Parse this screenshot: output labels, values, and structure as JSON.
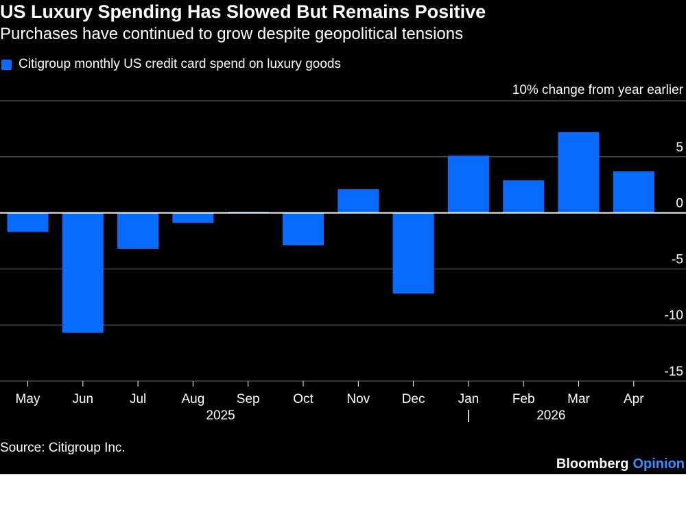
{
  "header": {
    "title": "US Luxury Spending Has Slowed But Remains Positive",
    "subtitle": "Purchases have continued to grow despite geopolitical tensions"
  },
  "footer": {
    "source": "Source: Citigroup Inc.",
    "brand_main": "Bloomberg",
    "brand_accent": "Opinion"
  },
  "colors": {
    "bar": "#0a6bff",
    "background": "#000000",
    "grid": "#6e6e6e",
    "zero_line": "#ffffff",
    "text": "#ffffff",
    "brand_accent": "#3a8dff"
  },
  "chart_data": {
    "type": "bar",
    "title": "US Luxury Spending Has Slowed But Remains Positive",
    "subtitle": "Purchases have continued to grow despite geopolitical tensions",
    "ylabel": "10% change from year earlier",
    "xlabel": "",
    "categories": [
      "May",
      "Jun",
      "Jul",
      "Aug",
      "Sep",
      "Oct",
      "Nov",
      "Dec",
      "Jan",
      "Feb",
      "Mar",
      "Apr"
    ],
    "year_labels": [
      {
        "label": "2025",
        "from": 0,
        "to": 7
      },
      {
        "label": "2026",
        "from": 8,
        "to": 11
      }
    ],
    "year_divider": "|",
    "series": [
      {
        "name": "Citigroup monthly US credit card spend on luxury goods",
        "values": [
          -1.7,
          -10.7,
          -3.2,
          -0.9,
          0.1,
          -2.9,
          2.1,
          -7.2,
          5.1,
          2.9,
          7.2,
          3.7
        ]
      }
    ],
    "ylim": [
      -15,
      10
    ],
    "yticks": [
      -15,
      -10,
      -5,
      0,
      5
    ],
    "ytick_labels": [
      "-15",
      "-10",
      "-5",
      "0",
      "5"
    ],
    "grid": true,
    "legend_position": "top-left",
    "y_axis_side": "right"
  }
}
